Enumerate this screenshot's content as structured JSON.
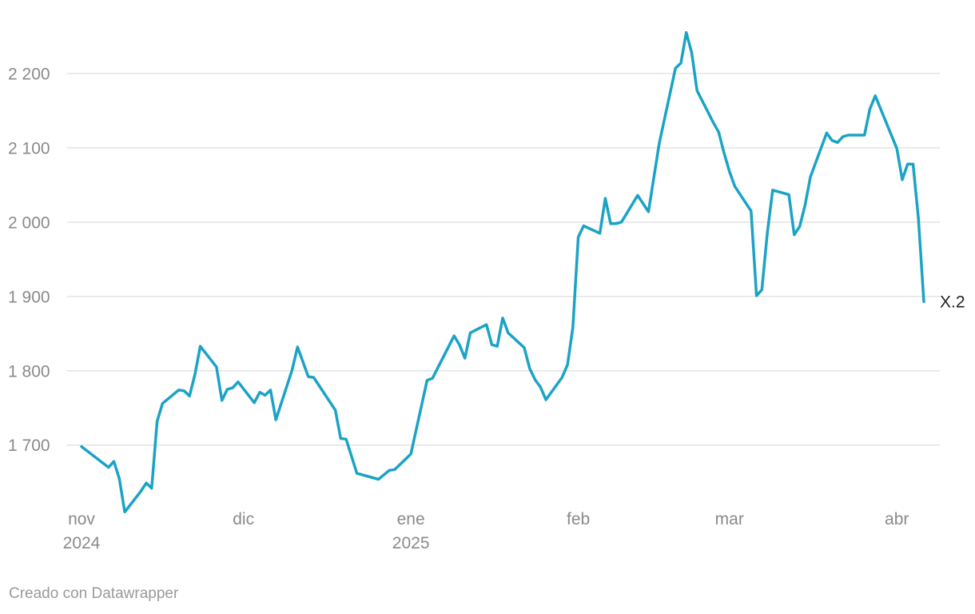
{
  "chart_data": {
    "type": "line",
    "x_axis": {
      "ticks": [
        {
          "date": "2024-11-01",
          "label": "nov",
          "sublabel": "2024"
        },
        {
          "date": "2024-12-01",
          "label": "dic",
          "sublabel": ""
        },
        {
          "date": "2025-01-01",
          "label": "ene",
          "sublabel": "2025"
        },
        {
          "date": "2025-02-01",
          "label": "feb",
          "sublabel": ""
        },
        {
          "date": "2025-03-01",
          "label": "mar",
          "sublabel": ""
        },
        {
          "date": "2025-04-01",
          "label": "abr",
          "sublabel": ""
        }
      ]
    },
    "y_axis": {
      "ticks": [
        1700,
        1800,
        1900,
        2000,
        2100,
        2200
      ],
      "tick_labels": [
        "1 700",
        "1 800",
        "1 900",
        "2 000",
        "2 100",
        "2 200"
      ],
      "range": [
        1600,
        2260
      ],
      "grid": true
    },
    "series": [
      {
        "name": "X.2",
        "color": "#1ba3c6",
        "points": [
          [
            "2024-11-01",
            1698
          ],
          [
            "2024-11-06",
            1670
          ],
          [
            "2024-11-07",
            1678
          ],
          [
            "2024-11-08",
            1655
          ],
          [
            "2024-11-09",
            1610
          ],
          [
            "2024-11-12",
            1638
          ],
          [
            "2024-11-13",
            1649
          ],
          [
            "2024-11-14",
            1642
          ],
          [
            "2024-11-15",
            1732
          ],
          [
            "2024-11-16",
            1756
          ],
          [
            "2024-11-19",
            1774
          ],
          [
            "2024-11-20",
            1773
          ],
          [
            "2024-11-21",
            1766
          ],
          [
            "2024-11-22",
            1795
          ],
          [
            "2024-11-23",
            1833
          ],
          [
            "2024-11-26",
            1805
          ],
          [
            "2024-11-27",
            1760
          ],
          [
            "2024-11-28",
            1775
          ],
          [
            "2024-11-29",
            1777
          ],
          [
            "2024-11-30",
            1785
          ],
          [
            "2024-12-03",
            1757
          ],
          [
            "2024-12-04",
            1771
          ],
          [
            "2024-12-05",
            1767
          ],
          [
            "2024-12-06",
            1774
          ],
          [
            "2024-12-07",
            1734
          ],
          [
            "2024-12-10",
            1801
          ],
          [
            "2024-12-11",
            1832
          ],
          [
            "2024-12-13",
            1792
          ],
          [
            "2024-12-14",
            1791
          ],
          [
            "2024-12-18",
            1747
          ],
          [
            "2024-12-19",
            1709
          ],
          [
            "2024-12-20",
            1708
          ],
          [
            "2024-12-22",
            1662
          ],
          [
            "2024-12-26",
            1654
          ],
          [
            "2024-12-28",
            1666
          ],
          [
            "2024-12-29",
            1667
          ],
          [
            "2025-01-01",
            1688
          ],
          [
            "2025-01-04",
            1787
          ],
          [
            "2025-01-05",
            1790
          ],
          [
            "2025-01-09",
            1847
          ],
          [
            "2025-01-10",
            1835
          ],
          [
            "2025-01-11",
            1817
          ],
          [
            "2025-01-12",
            1851
          ],
          [
            "2025-01-15",
            1862
          ],
          [
            "2025-01-16",
            1835
          ],
          [
            "2025-01-17",
            1833
          ],
          [
            "2025-01-18",
            1871
          ],
          [
            "2025-01-19",
            1851
          ],
          [
            "2025-01-22",
            1831
          ],
          [
            "2025-01-23",
            1803
          ],
          [
            "2025-01-24",
            1788
          ],
          [
            "2025-01-25",
            1778
          ],
          [
            "2025-01-26",
            1761
          ],
          [
            "2025-01-29",
            1791
          ],
          [
            "2025-01-30",
            1808
          ],
          [
            "2025-01-31",
            1858
          ],
          [
            "2025-02-01",
            1980
          ],
          [
            "2025-02-02",
            1995
          ],
          [
            "2025-02-05",
            1985
          ],
          [
            "2025-02-06",
            2032
          ],
          [
            "2025-02-07",
            1998
          ],
          [
            "2025-02-08",
            1998
          ],
          [
            "2025-02-09",
            2000
          ],
          [
            "2025-02-12",
            2036
          ],
          [
            "2025-02-14",
            2014
          ],
          [
            "2025-02-16",
            2106
          ],
          [
            "2025-02-19",
            2207
          ],
          [
            "2025-02-20",
            2214
          ],
          [
            "2025-02-21",
            2255
          ],
          [
            "2025-02-22",
            2228
          ],
          [
            "2025-02-23",
            2177
          ],
          [
            "2025-02-26",
            2134
          ],
          [
            "2025-02-27",
            2121
          ],
          [
            "2025-02-28",
            2093
          ],
          [
            "2025-03-01",
            2068
          ],
          [
            "2025-03-02",
            2048
          ],
          [
            "2025-03-05",
            2015
          ],
          [
            "2025-03-06",
            1901
          ],
          [
            "2025-03-07",
            1909
          ],
          [
            "2025-03-08",
            1985
          ],
          [
            "2025-03-09",
            2043
          ],
          [
            "2025-03-12",
            2037
          ],
          [
            "2025-03-13",
            1983
          ],
          [
            "2025-03-14",
            1994
          ],
          [
            "2025-03-15",
            2023
          ],
          [
            "2025-03-16",
            2061
          ],
          [
            "2025-03-19",
            2120
          ],
          [
            "2025-03-20",
            2110
          ],
          [
            "2025-03-21",
            2107
          ],
          [
            "2025-03-22",
            2115
          ],
          [
            "2025-03-23",
            2117
          ],
          [
            "2025-03-26",
            2117
          ],
          [
            "2025-03-27",
            2152
          ],
          [
            "2025-03-28",
            2170
          ],
          [
            "2025-04-01",
            2099
          ],
          [
            "2025-04-02",
            2057
          ],
          [
            "2025-04-03",
            2078
          ],
          [
            "2025-04-04",
            2078
          ],
          [
            "2025-04-05",
            2005
          ],
          [
            "2025-04-06",
            1893
          ]
        ]
      }
    ],
    "legend": "inline end label"
  },
  "footer": {
    "credit": "Creado con Datawrapper"
  }
}
